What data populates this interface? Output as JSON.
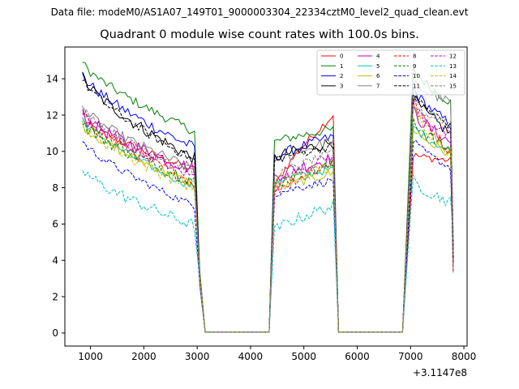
{
  "header": {
    "data_file": "Data file: modeM0/AS1A07_149T01_9000003304_22334cztM0_level2_quad_clean.evt",
    "title": "Quadrant 0 module wise count rates with 100.0s bins."
  },
  "chart_data": {
    "type": "line",
    "title": "Quadrant 0 module wise count rates with 100.0s bins.",
    "xlabel": "",
    "ylabel": "",
    "x_offset_label": "+3.1147e8",
    "xlim": [
      520,
      8060
    ],
    "ylim": [
      -0.72,
      15.75
    ],
    "xticks": [
      1000,
      2000,
      3000,
      4000,
      5000,
      6000,
      7000,
      8000
    ],
    "xtick_labels": [
      "1000",
      "2000",
      "3000",
      "4000",
      "5000",
      "6000",
      "7000",
      "8000"
    ],
    "yticks": [
      0,
      2,
      4,
      6,
      8,
      10,
      12,
      14
    ],
    "ytick_labels": [
      "0",
      "2",
      "4",
      "6",
      "8",
      "10",
      "12",
      "14"
    ],
    "grid": false,
    "legend": {
      "position": "top-right",
      "columns": 4
    },
    "segments": [
      {
        "start": 850,
        "end": 2950
      },
      {
        "start": 4450,
        "end": 5550
      },
      {
        "start": 7050,
        "end": 7750
      }
    ],
    "gap_x": [
      3050,
      3150,
      4350,
      5650,
      5750,
      6850
    ],
    "series": [
      {
        "name": "0",
        "color": "#ff0000",
        "dash": false,
        "levels": [
          11.8,
          9.0,
          7.9,
          12.0,
          9.8,
          9.5
        ]
      },
      {
        "name": "1",
        "color": "#008000",
        "dash": false,
        "levels": [
          14.9,
          11.1,
          10.5,
          11.2,
          14.6,
          12.7
        ]
      },
      {
        "name": "2",
        "color": "#0000ff",
        "dash": false,
        "levels": [
          14.2,
          10.2,
          9.6,
          10.8,
          13.5,
          11.5
        ]
      },
      {
        "name": "3",
        "color": "#000000",
        "dash": false,
        "levels": [
          14.1,
          9.6,
          9.6,
          10.5,
          13.0,
          11.0
        ]
      },
      {
        "name": "4",
        "color": "#bf00bf",
        "dash": false,
        "levels": [
          12.0,
          9.0,
          8.6,
          9.6,
          12.2,
          10.5
        ]
      },
      {
        "name": "5",
        "color": "#00bfbf",
        "dash": false,
        "levels": [
          11.8,
          8.0,
          8.3,
          9.0,
          11.4,
          10.0
        ]
      },
      {
        "name": "6",
        "color": "#bfbf00",
        "dash": false,
        "levels": [
          11.5,
          8.2,
          7.8,
          8.8,
          11.3,
          9.8
        ]
      },
      {
        "name": "7",
        "color": "#808080",
        "dash": false,
        "levels": [
          12.4,
          9.0,
          9.3,
          10.6,
          13.8,
          12.7
        ]
      },
      {
        "name": "8",
        "color": "#ff0000",
        "dash": true,
        "levels": [
          12.0,
          8.3,
          7.7,
          9.4,
          12.8,
          10.0
        ]
      },
      {
        "name": "9",
        "color": "#008000",
        "dash": true,
        "levels": [
          11.6,
          8.4,
          8.2,
          9.2,
          11.8,
          10.0
        ]
      },
      {
        "name": "10",
        "color": "#0000ff",
        "dash": true,
        "levels": [
          10.6,
          7.0,
          7.6,
          8.4,
          10.6,
          9.1
        ]
      },
      {
        "name": "11",
        "color": "#000000",
        "dash": true,
        "levels": [
          14.0,
          9.5,
          9.5,
          10.3,
          13.2,
          11.4
        ]
      },
      {
        "name": "12",
        "color": "#bf00bf",
        "dash": true,
        "levels": [
          12.2,
          8.6,
          8.0,
          9.8,
          12.6,
          10.8
        ]
      },
      {
        "name": "13",
        "color": "#00bfbf",
        "dash": true,
        "levels": [
          9.0,
          5.9,
          5.6,
          7.0,
          8.4,
          7.2
        ]
      },
      {
        "name": "14",
        "color": "#bfbf00",
        "dash": true,
        "levels": [
          11.6,
          8.0,
          8.1,
          9.2,
          12.4,
          10.0
        ]
      },
      {
        "name": "15",
        "color": "#808080",
        "dash": true,
        "levels": [
          12.4,
          8.9,
          8.6,
          9.9,
          12.4,
          11.6
        ]
      }
    ]
  }
}
